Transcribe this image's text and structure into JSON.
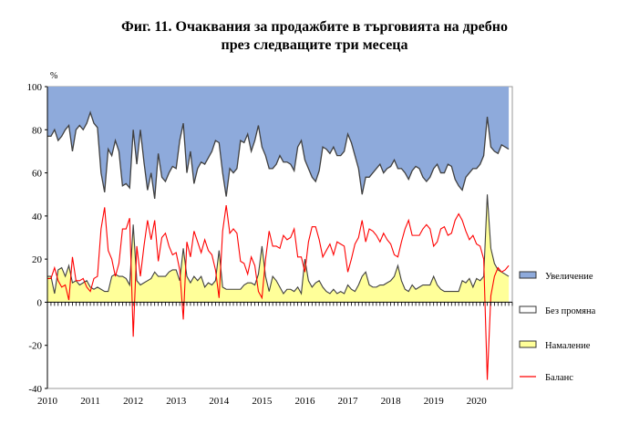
{
  "chart_data": {
    "type": "area",
    "title_line1": "Фиг. 11. Очаквания за продажбите в търговията на дребно",
    "title_line2": "през следващите три месеца",
    "ylabel": "%",
    "ylim": [
      -40,
      100
    ],
    "yticks": [
      "100",
      "80",
      "60",
      "40",
      "20",
      "0",
      "-20",
      "-40"
    ],
    "ytick_values": [
      100,
      80,
      60,
      40,
      20,
      0,
      -20,
      -40
    ],
    "xticks": [
      "2010",
      "2011",
      "2012",
      "2013",
      "2014",
      "2015",
      "2016",
      "2017",
      "2018",
      "2019",
      "2020"
    ],
    "x_start": "2010-01",
    "frequency": "monthly",
    "legend_position": "right",
    "legend": [
      "Увеличение",
      "Без промяна",
      "Намаление",
      "Баланс"
    ],
    "colors": {
      "increase": "#8eaadb",
      "no_change": "#ffffff",
      "decrease": "#ffff99",
      "balance": "#ff0000",
      "line": "#404040"
    },
    "series": [
      {
        "name": "Увеличение",
        "values": [
          23,
          23,
          20,
          25,
          23,
          20,
          18,
          30,
          20,
          18,
          20,
          17,
          12,
          17,
          19,
          40,
          49,
          29,
          32,
          25,
          30,
          46,
          45,
          47,
          20,
          36,
          20,
          35,
          48,
          40,
          52,
          31,
          42,
          44,
          40,
          37,
          38,
          25,
          17,
          40,
          30,
          45,
          38,
          35,
          36,
          33,
          30,
          25,
          26,
          40,
          51,
          38,
          40,
          38,
          25,
          26,
          22,
          30,
          25,
          18,
          28,
          32,
          38,
          38,
          36,
          32,
          35,
          35,
          36,
          39,
          28,
          25,
          34,
          38,
          42,
          44,
          39,
          28,
          29,
          31,
          28,
          32,
          32,
          30,
          22,
          26,
          32,
          38,
          50,
          42,
          42,
          40,
          38,
          36,
          40,
          38,
          37,
          34,
          38,
          38,
          40,
          43,
          39,
          37,
          38,
          42,
          44,
          42,
          38,
          36,
          40,
          40,
          36,
          37,
          43,
          46,
          48,
          42,
          40,
          38,
          38,
          36,
          32,
          14,
          28,
          30,
          31,
          27,
          28,
          29
        ]
      },
      {
        "name": "Намаление",
        "values": [
          12,
          12,
          4,
          15,
          16,
          12,
          17,
          9,
          10,
          8,
          9,
          10,
          7,
          6,
          7,
          6,
          5,
          5,
          12,
          13,
          12,
          12,
          11,
          8,
          36,
          10,
          8,
          9,
          10,
          11,
          14,
          12,
          12,
          12,
          14,
          15,
          15,
          10,
          25,
          12,
          9,
          12,
          10,
          12,
          7,
          9,
          8,
          10,
          24,
          7,
          6,
          6,
          6,
          6,
          6,
          8,
          9,
          9,
          8,
          13,
          26,
          12,
          5,
          12,
          10,
          7,
          4,
          6,
          6,
          5,
          7,
          4,
          20,
          10,
          7,
          9,
          10,
          7,
          5,
          4,
          6,
          4,
          5,
          4,
          8,
          6,
          5,
          8,
          12,
          14,
          8,
          7,
          7,
          8,
          8,
          9,
          10,
          12,
          17,
          10,
          6,
          5,
          8,
          6,
          7,
          8,
          8,
          8,
          12,
          8,
          6,
          5,
          5,
          5,
          5,
          5,
          10,
          9,
          11,
          7,
          11,
          10,
          12,
          50,
          25,
          18,
          15,
          14,
          13,
          12
        ]
      },
      {
        "name": "Баланс",
        "values": [
          11,
          11,
          16,
          10,
          7,
          8,
          1,
          21,
          10,
          10,
          11,
          7,
          5,
          11,
          12,
          34,
          44,
          24,
          20,
          12,
          18,
          34,
          34,
          39,
          -16,
          26,
          12,
          26,
          38,
          29,
          38,
          19,
          30,
          32,
          26,
          22,
          23,
          15,
          -8,
          28,
          21,
          33,
          28,
          23,
          29,
          24,
          22,
          15,
          2,
          33,
          45,
          32,
          34,
          32,
          19,
          18,
          13,
          21,
          17,
          5,
          2,
          20,
          33,
          26,
          26,
          25,
          31,
          29,
          30,
          34,
          21,
          21,
          14,
          28,
          35,
          35,
          29,
          21,
          24,
          27,
          22,
          28,
          27,
          26,
          14,
          20,
          27,
          30,
          38,
          28,
          34,
          33,
          31,
          28,
          32,
          29,
          27,
          22,
          21,
          28,
          34,
          38,
          31,
          31,
          31,
          34,
          36,
          34,
          26,
          28,
          34,
          35,
          31,
          32,
          38,
          41,
          38,
          33,
          29,
          31,
          27,
          26,
          20,
          -36,
          3,
          12,
          16,
          14,
          15,
          17
        ]
      }
    ],
    "note_no_change": "Без промяна = 100 - Увеличение - Намаление"
  }
}
